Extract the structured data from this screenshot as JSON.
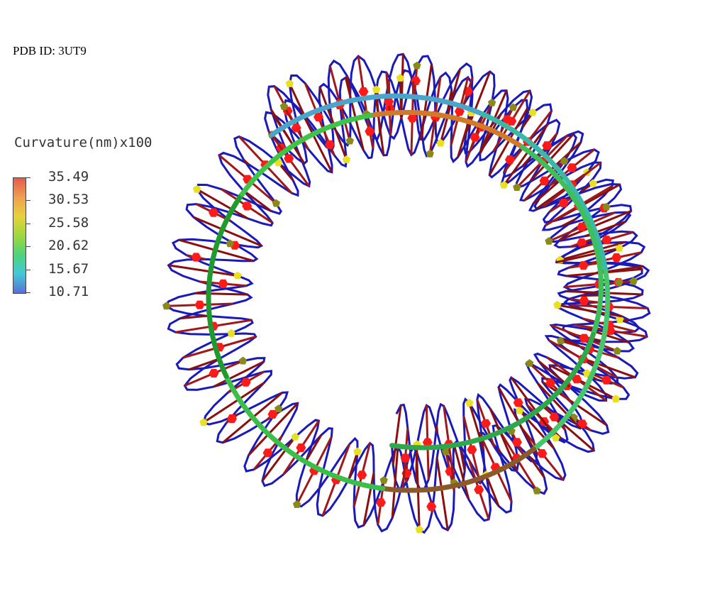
{
  "pdb_label": "PDB ID: 3UT9",
  "colorbar": {
    "title": "Curvature(nm)x100",
    "stops": [
      "#5a6fd6",
      "#41c9d8",
      "#4fd37a",
      "#9ed83c",
      "#e6d23c",
      "#f0a050",
      "#e85a4a"
    ],
    "ticks": [
      "35.49",
      "30.53",
      "25.58",
      "20.62",
      "15.67",
      "10.71"
    ]
  },
  "colors": {
    "backbone": "#1a1ab8",
    "base_red": "#ff1a1a",
    "base_dark": "#8a1010",
    "sugar_yellow": "#e8e020",
    "sugar_olive": "#8a8a1a"
  }
}
